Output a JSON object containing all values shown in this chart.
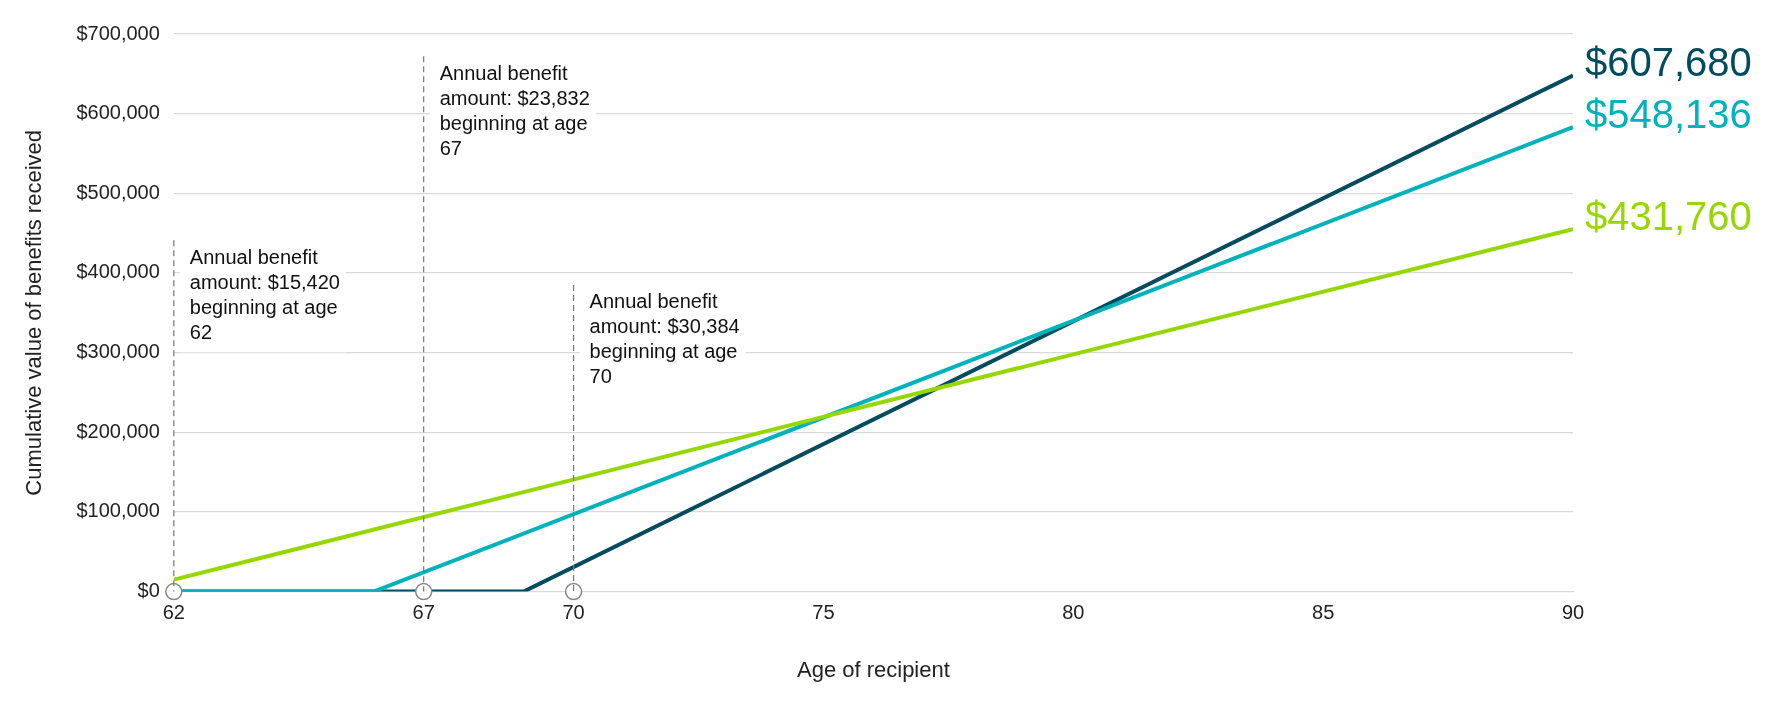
{
  "chart_data": {
    "type": "line",
    "xlabel": "Age of recipient",
    "ylabel": "Cumulative value of benefits received",
    "xlim": [
      62,
      90
    ],
    "xticks": [
      62,
      67,
      70,
      75,
      80,
      85,
      90
    ],
    "ylim": [
      0,
      700000
    ],
    "yticks": [
      {
        "value": 0,
        "label": "$0"
      },
      {
        "value": 100000,
        "label": "$100,000"
      },
      {
        "value": 200000,
        "label": "$200,000"
      },
      {
        "value": 300000,
        "label": "$300,000"
      },
      {
        "value": 400000,
        "label": "$400,000"
      },
      {
        "value": 500000,
        "label": "$500,000"
      },
      {
        "value": 600000,
        "label": "$600,000"
      },
      {
        "value": 700000,
        "label": "$700,000"
      }
    ],
    "grid": "y",
    "legend": false,
    "line_style": "solid",
    "series": [
      {
        "color": "#97d700",
        "x": [
          62,
          90
        ],
        "values": [
          15000,
          455000
        ]
      },
      {
        "color": "#00b2bb",
        "x": [
          62,
          66,
          90
        ],
        "values": [
          0,
          0,
          583000
        ]
      },
      {
        "color": "#004c5e",
        "x": [
          62,
          69,
          90
        ],
        "values": [
          0,
          0,
          648000
        ]
      },
      {
        "type": "scatter",
        "color": "#ffffff",
        "x": [
          62,
          67,
          70
        ],
        "values": [
          0,
          0,
          0
        ]
      }
    ],
    "ref_lines": [
      {
        "axis": "x",
        "value": 62,
        "label": "Annual benefit amount: $15,420 beginning at age 62",
        "line_style": "dashed"
      },
      {
        "axis": "x",
        "value": 67,
        "label": "Annual benefit amount: $23,832 beginning at age 67",
        "line_style": "dashed"
      },
      {
        "axis": "x",
        "value": 70,
        "label": "Annual benefit amount: $30,384 beginning at age 70",
        "line_style": "dashed"
      }
    ],
    "annotations": [
      "$431,760",
      "$548,136",
      "$607,680"
    ]
  }
}
